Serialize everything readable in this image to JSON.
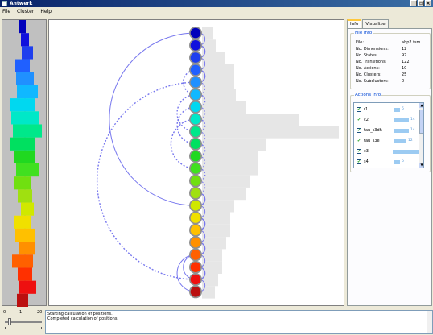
{
  "window": {
    "title": "Antwerk"
  },
  "menu": [
    "File",
    "Cluster",
    "Help"
  ],
  "tabs": [
    {
      "label": "Info",
      "active": true
    },
    {
      "label": "Visualize",
      "active": false
    }
  ],
  "file_info": {
    "title": "File info",
    "rows": [
      {
        "key": "File:",
        "value": "abp2.fsm"
      },
      {
        "key": "No. Dimensions:",
        "value": "12"
      },
      {
        "key": "No. States:",
        "value": "97"
      },
      {
        "key": "No. Transitions:",
        "value": "122"
      },
      {
        "key": "No. Actions:",
        "value": "10"
      },
      {
        "key": "No. Clusters:",
        "value": "25"
      },
      {
        "key": "No. Subclusters:",
        "value": "0"
      }
    ]
  },
  "actions_info": {
    "title": "Actions info",
    "rows": [
      {
        "name": "r1",
        "checked": true,
        "count": 6,
        "label": "6"
      },
      {
        "name": "c2",
        "checked": true,
        "count": 14,
        "label": "14"
      },
      {
        "name": "tau_s3dh",
        "checked": true,
        "count": 14,
        "label": "14"
      },
      {
        "name": "tau_s3e",
        "checked": true,
        "count": 12,
        "label": "12"
      },
      {
        "name": "c3",
        "checked": true,
        "count": 30,
        "label": "30"
      },
      {
        "name": "s4",
        "checked": true,
        "count": 6,
        "label": "6"
      }
    ]
  },
  "slider": {
    "min_label": "0",
    "mid_label": "1",
    "max_label": "20",
    "level": 0.1
  },
  "log": [
    "Starting calculation of positions.",
    "Completed calculation of positions."
  ],
  "colors": {
    "arc": "#7777ee",
    "node_border": "#909090",
    "bars": "#e6e6e6",
    "titlebar": "#0a246a",
    "accent": "#9ccbf2"
  },
  "clusters": [
    {
      "color": "#0000bb",
      "bar": 14
    },
    {
      "color": "#1010dd",
      "bar": 18
    },
    {
      "color": "#1f3fee",
      "bar": 28
    },
    {
      "color": "#2060ff",
      "bar": 40
    },
    {
      "color": "#2090ff",
      "bar": 40
    },
    {
      "color": "#10b8ff",
      "bar": 42
    },
    {
      "color": "#00d8f0",
      "bar": 55
    },
    {
      "color": "#00e8c8",
      "bar": 120
    },
    {
      "color": "#00e88a",
      "bar": 170
    },
    {
      "color": "#00e060",
      "bar": 80
    },
    {
      "color": "#20d820",
      "bar": 70
    },
    {
      "color": "#40e020",
      "bar": 70
    },
    {
      "color": "#70e010",
      "bar": 60
    },
    {
      "color": "#a0e010",
      "bar": 55
    },
    {
      "color": "#d0e800",
      "bar": 40
    },
    {
      "color": "#f0e000",
      "bar": 35
    },
    {
      "color": "#ffc000",
      "bar": 35
    },
    {
      "color": "#ff9000",
      "bar": 30
    },
    {
      "color": "#ff6000",
      "bar": 25
    },
    {
      "color": "#ff3000",
      "bar": 25
    },
    {
      "color": "#ee1010",
      "bar": 20
    },
    {
      "color": "#bb1010",
      "bar": 16
    }
  ]
}
